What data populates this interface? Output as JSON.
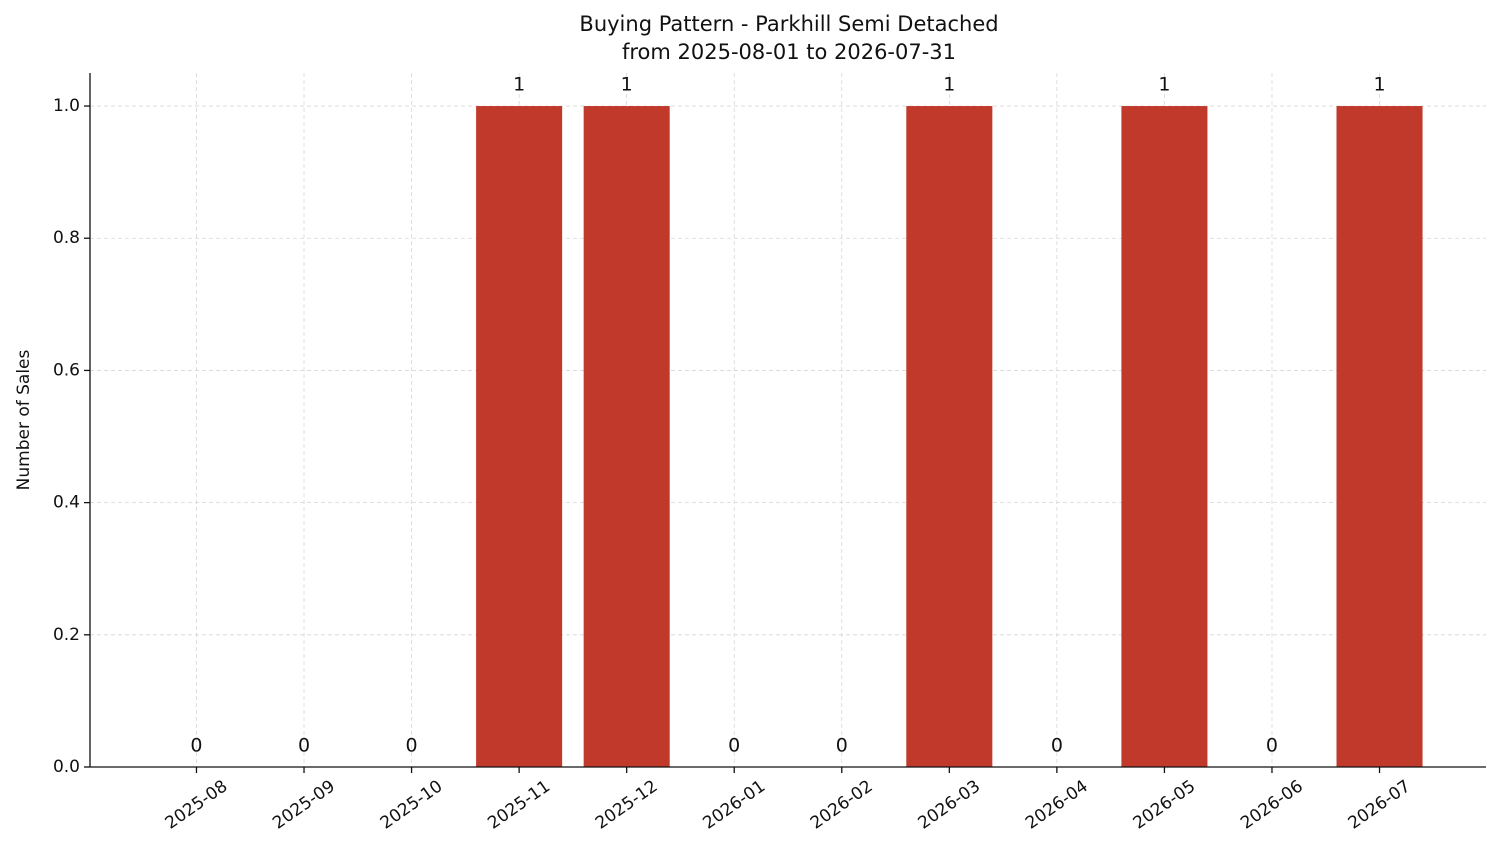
{
  "chart_data": {
    "type": "bar",
    "title": "Buying Pattern - Parkhill Semi Detached",
    "subtitle": "from 2025-08-01 to 2026-07-31",
    "y_label": "Number of Sales",
    "categories": [
      "2025-08",
      "2025-09",
      "2025-10",
      "2025-11",
      "2025-12",
      "2026-01",
      "2026-02",
      "2026-03",
      "2026-04",
      "2026-05",
      "2026-06",
      "2026-07"
    ],
    "values": [
      0,
      0,
      0,
      1,
      1,
      0,
      0,
      1,
      0,
      1,
      0,
      1
    ],
    "color": "#c0392b",
    "ylim": [
      0,
      1.05
    ],
    "yticks": [
      {
        "value": 0,
        "label": "0.0"
      },
      0.2,
      0.4,
      0.6,
      0.8,
      {
        "value": 1,
        "label": "1.0"
      }
    ],
    "grid": true
  }
}
